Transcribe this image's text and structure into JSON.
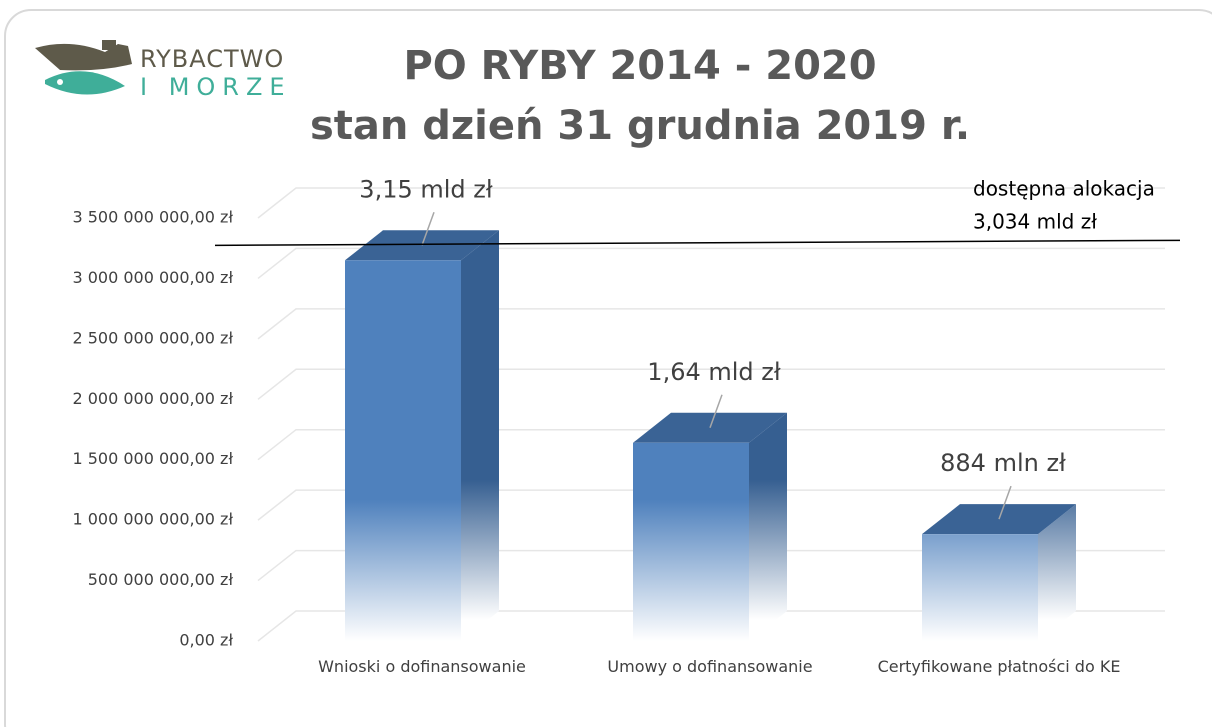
{
  "chart_data": {
    "type": "bar3d",
    "logo": [
      "RYBACTWO",
      "I MORZE"
    ],
    "title": [
      "PO RYBY 2014 - 2020",
      "stan dzień 31 grudnia 2019 r."
    ],
    "categories": [
      "Wnioski o dofinansowanie",
      "Umowy o dofinansowanie",
      "Certyfikowane płatności do KE"
    ],
    "values": [
      3150000000,
      1640000000,
      884000000
    ],
    "value_labels": [
      "3,15 mld zł",
      "1,64 mld zł",
      "884 mln zł"
    ],
    "color": "#4f81bd",
    "ylim": [
      0,
      3500000000
    ],
    "yticks": [
      {
        "value": 0,
        "label": "0,00 zł"
      },
      {
        "value": 500000000,
        "label": "500 000 000,00 zł"
      },
      {
        "value": 1000000000,
        "label": "1 000 000 000,00 zł"
      },
      {
        "value": 1500000000,
        "label": "1 500 000 000,00 zł"
      },
      {
        "value": 2000000000,
        "label": "2 000 000 000,00 zł"
      },
      {
        "value": 2500000000,
        "label": "2 500 000 000,00 zł"
      },
      {
        "value": 3000000000,
        "label": "3 000 000 000,00 zł"
      },
      {
        "value": 3500000000,
        "label": "3 500 000 000,00 zł"
      }
    ],
    "grid": true,
    "reference_line": {
      "value": 3034000000,
      "label": [
        "dostępna alokacja",
        "3,034 mld zł"
      ]
    }
  }
}
